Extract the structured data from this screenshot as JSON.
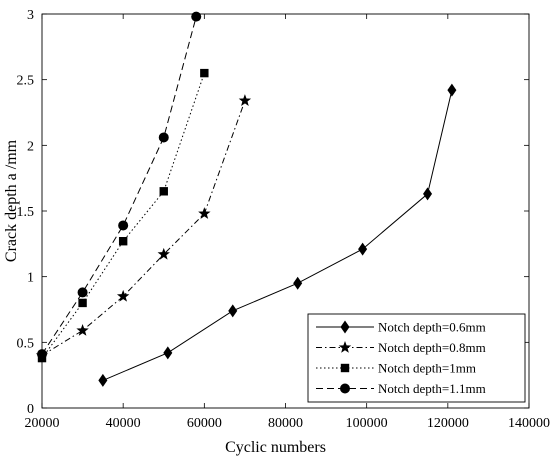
{
  "chart_data": {
    "type": "line",
    "title": "",
    "xlabel": "Cyclic numbers",
    "ylabel": "Crack depth a /mm",
    "xlim": [
      20000,
      140000
    ],
    "ylim": [
      0,
      3
    ],
    "x_ticks": [
      20000,
      40000,
      60000,
      80000,
      100000,
      120000,
      140000
    ],
    "y_ticks": [
      0,
      0.5,
      1,
      1.5,
      2,
      2.5,
      3
    ],
    "x_tick_labels": [
      "20000",
      "40000",
      "60000",
      "80000",
      "100000",
      "120000",
      "140000"
    ],
    "y_tick_labels": [
      "0",
      "0.5",
      "1",
      "1.5",
      "2",
      "2.5",
      "3"
    ],
    "grid": false,
    "legend_position": "bottom-right",
    "series": [
      {
        "name": "Notch depth=0.6mm",
        "marker": "diamond",
        "line_style": "solid",
        "x": [
          35000,
          51000,
          67000,
          83000,
          99000,
          115000,
          121000
        ],
        "y": [
          0.21,
          0.42,
          0.74,
          0.95,
          1.21,
          1.63,
          2.42
        ]
      },
      {
        "name": "Notch depth=0.8mm",
        "marker": "star",
        "line_style": "dashdot",
        "x": [
          20000,
          30000,
          40000,
          50000,
          60000,
          70000
        ],
        "y": [
          0.4,
          0.59,
          0.85,
          1.17,
          1.48,
          2.34
        ]
      },
      {
        "name": "Notch depth=1mm",
        "marker": "square",
        "line_style": "dotted",
        "x": [
          20000,
          30000,
          40000,
          50000,
          60000
        ],
        "y": [
          0.38,
          0.8,
          1.27,
          1.65,
          2.55
        ]
      },
      {
        "name": "Notch depth=1.1mm",
        "marker": "circle",
        "line_style": "dashed",
        "x": [
          20000,
          30000,
          40000,
          50000,
          58000
        ],
        "y": [
          0.41,
          0.88,
          1.39,
          2.06,
          2.98
        ]
      }
    ]
  }
}
